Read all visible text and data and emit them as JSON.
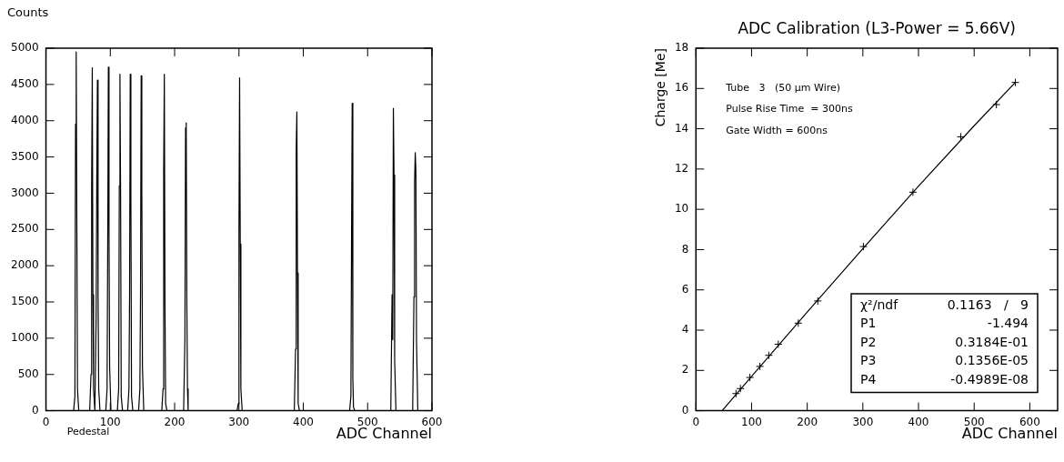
{
  "chart_data": [
    {
      "type": "line",
      "ylabel": "Counts",
      "xlabel": "ADC Channel",
      "color": "#000000",
      "marker": "none",
      "x": [
        0,
        43,
        45,
        46,
        47,
        48,
        49,
        51,
        68,
        70,
        71,
        72,
        73,
        74,
        76,
        78,
        79,
        80,
        81,
        82,
        84,
        93,
        95,
        96,
        97,
        98,
        99,
        101,
        111,
        113,
        114,
        115,
        116,
        117,
        119,
        127,
        129,
        130,
        131,
        132,
        133,
        135,
        144,
        146,
        147,
        148,
        149,
        150,
        152,
        180,
        182,
        183,
        184,
        185,
        186,
        188,
        214,
        216,
        217,
        218,
        219,
        220,
        221,
        223,
        297,
        299,
        300,
        301,
        302,
        303,
        305,
        386,
        388,
        389,
        390,
        391,
        392,
        394,
        472,
        474,
        475,
        476,
        477,
        478,
        480,
        536,
        538,
        539,
        540,
        541,
        542,
        544,
        570,
        572,
        573,
        574,
        575,
        576,
        578,
        600
      ],
      "values": [
        0,
        0,
        200,
        3950,
        4950,
        2580,
        300,
        0,
        0,
        500,
        3100,
        4730,
        1600,
        300,
        0,
        1280,
        3200,
        4560,
        1600,
        300,
        0,
        0,
        300,
        2270,
        4740,
        2440,
        600,
        0,
        0,
        300,
        3100,
        4640,
        3000,
        200,
        0,
        0,
        300,
        1600,
        4640,
        3000,
        200,
        0,
        0,
        300,
        1640,
        4620,
        3050,
        600,
        0,
        0,
        300,
        3300,
        4640,
        1450,
        100,
        0,
        0,
        1000,
        3900,
        3970,
        1470,
        300,
        0,
        0,
        0,
        100,
        2450,
        4590,
        2300,
        300,
        0,
        0,
        850,
        3600,
        4120,
        1900,
        100,
        0,
        0,
        200,
        2400,
        4240,
        450,
        50,
        0,
        0,
        1600,
        980,
        4170,
        3250,
        700,
        0,
        0,
        1570,
        3150,
        3560,
        3300,
        950,
        0,
        0
      ],
      "annotations": [
        {
          "text": "Pedestal",
          "x": 47,
          "y": 0
        }
      ],
      "xlim": [
        0,
        600
      ],
      "xticks": [
        0,
        100,
        200,
        300,
        400,
        500,
        600
      ],
      "ylim": [
        0,
        5000
      ],
      "yticks": [
        0,
        500,
        1000,
        1500,
        2000,
        2500,
        3000,
        3500,
        4000,
        4500,
        5000
      ]
    },
    {
      "type": "scatter",
      "title": "ADC Calibration (L3-Power = 5.66V)",
      "xlabel": "ADC Channel",
      "ylabel": "Charge [Me]",
      "series": [
        {
          "type": "scatter",
          "marker": "cross",
          "color": "#000000",
          "x": [
            72,
            80,
            97,
            115,
            131,
            148,
            184,
            219,
            301,
            390,
            476,
            540,
            574
          ],
          "values": [
            0.85,
            1.1,
            1.65,
            2.2,
            2.75,
            3.3,
            4.35,
            5.45,
            8.15,
            10.85,
            13.6,
            15.2,
            16.3
          ]
        },
        {
          "type": "line",
          "marker": "none",
          "color": "#000000",
          "x": [
            47,
            100,
            200,
            300,
            400,
            500,
            574
          ],
          "values": [
            0,
            1.7,
            4.9,
            8.05,
            11.15,
            14.15,
            16.3
          ]
        }
      ],
      "annotations": [
        "Tube   3   (50 μm Wire)",
        "Pulse Rise Time  = 300ns",
        "Gate Width = 600ns",
        "χ²/ndf    0.1163   /   9",
        "P1    -1.494",
        "P2    0.3184E-01",
        "P3    0.1356E-05",
        "P4    -0.4989E-08"
      ],
      "xlim": [
        0,
        650
      ],
      "xticks": [
        0,
        100,
        200,
        300,
        400,
        500,
        600
      ],
      "ylim": [
        0,
        18
      ],
      "yticks": [
        0,
        2,
        4,
        6,
        8,
        10,
        12,
        14,
        16,
        18
      ]
    }
  ]
}
